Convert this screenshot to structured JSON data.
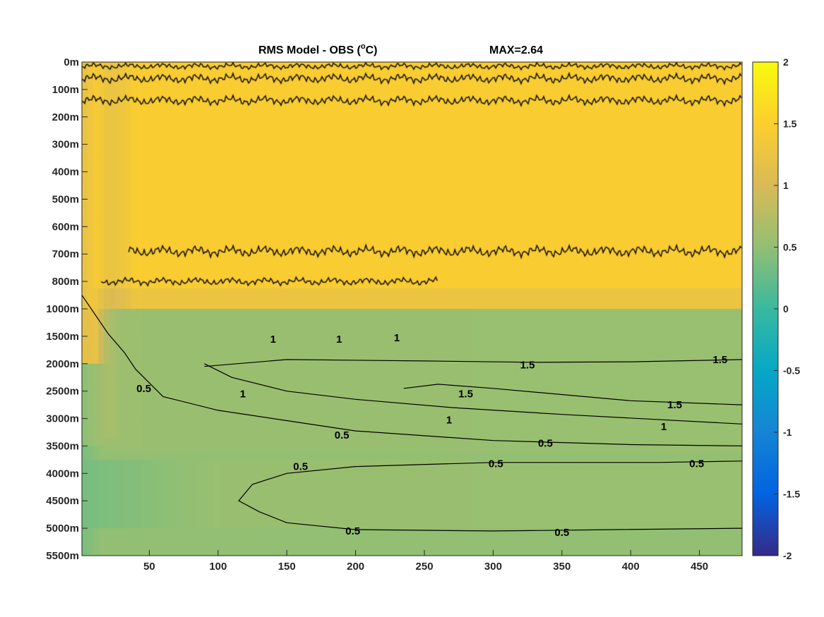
{
  "chart_data": {
    "type": "heatmap",
    "title": "RMS Model - OBS (°C)",
    "title_left": "RMS Model - OBS (",
    "title_sup": "o",
    "title_right": "C)",
    "max_label": "MAX=2.64",
    "xlim": [
      1,
      481
    ],
    "x_ticks": [
      50,
      100,
      150,
      200,
      250,
      300,
      350,
      400,
      450
    ],
    "y_tick_labels": [
      "0m",
      "100m",
      "200m",
      "300m",
      "400m",
      "500m",
      "600m",
      "700m",
      "800m",
      "1000m",
      "1500m",
      "2000m",
      "2500m",
      "3000m",
      "3500m",
      "4000m",
      "4500m",
      "5000m",
      "5500m"
    ],
    "colorbar": {
      "colormap": "parula",
      "clim": [
        -2,
        2
      ],
      "ticks": [
        "2",
        "1.5",
        "1",
        "0.5",
        "0",
        "-0.5",
        "-1",
        "-1.5",
        "-2"
      ]
    },
    "contour_levels": [
      0.5,
      1,
      1.5,
      2
    ],
    "contours": [
      {
        "level": 1.5,
        "points": [
          [
            90,
            11.1
          ],
          [
            150,
            10.85
          ],
          [
            250,
            10.9
          ],
          [
            330,
            10.95
          ],
          [
            400,
            10.93
          ],
          [
            481,
            10.85
          ]
        ]
      },
      {
        "level": 1.5,
        "points": [
          [
            235,
            11.9
          ],
          [
            260,
            11.75
          ],
          [
            300,
            11.9
          ],
          [
            400,
            12.35
          ],
          [
            481,
            12.5
          ]
        ]
      },
      {
        "level": 1,
        "points": [
          [
            90,
            11.0
          ],
          [
            110,
            11.5
          ],
          [
            150,
            12.0
          ],
          [
            200,
            12.3
          ],
          [
            270,
            12.6
          ],
          [
            350,
            12.85
          ],
          [
            481,
            13.2
          ]
        ]
      },
      {
        "level": 0.5,
        "points": [
          [
            1,
            8.5
          ],
          [
            20,
            9.9
          ],
          [
            32,
            10.6
          ],
          [
            40,
            11.2
          ],
          [
            60,
            12.2
          ],
          [
            100,
            12.7
          ],
          [
            200,
            13.45
          ],
          [
            300,
            13.8
          ],
          [
            400,
            13.95
          ],
          [
            481,
            14.0
          ]
        ]
      },
      {
        "level": 0.5,
        "points": [
          [
            481,
            14.55
          ],
          [
            420,
            14.6
          ],
          [
            300,
            14.6
          ],
          [
            200,
            14.75
          ],
          [
            150,
            15.0
          ],
          [
            125,
            15.4
          ],
          [
            115,
            16.0
          ],
          [
            130,
            16.4
          ],
          [
            150,
            16.8
          ],
          [
            200,
            17.05
          ],
          [
            300,
            17.1
          ],
          [
            481,
            17.0
          ]
        ]
      }
    ],
    "contour_labels": [
      {
        "text": "1.5",
        "x": 465,
        "y": 10.85
      },
      {
        "text": "1.5",
        "x": 325,
        "y": 11.05
      },
      {
        "text": "1.5",
        "x": 280,
        "y": 12.1
      },
      {
        "text": "1.5",
        "x": 432,
        "y": 12.5
      },
      {
        "text": "1",
        "x": 140,
        "y": 10.1
      },
      {
        "text": "1",
        "x": 188,
        "y": 10.1
      },
      {
        "text": "1",
        "x": 230,
        "y": 10.05
      },
      {
        "text": "1",
        "x": 118,
        "y": 12.1
      },
      {
        "text": "1",
        "x": 268,
        "y": 13.05
      },
      {
        "text": "1",
        "x": 424,
        "y": 13.3
      },
      {
        "text": "0.5",
        "x": 46,
        "y": 11.9
      },
      {
        "text": "0.5",
        "x": 190,
        "y": 13.6
      },
      {
        "text": "0.5",
        "x": 338,
        "y": 13.9
      },
      {
        "text": "0.5",
        "x": 160,
        "y": 14.75
      },
      {
        "text": "0.5",
        "x": 302,
        "y": 14.65
      },
      {
        "text": "0.5",
        "x": 448,
        "y": 14.65
      },
      {
        "text": "0.5",
        "x": 198,
        "y": 17.1
      },
      {
        "text": "0.5",
        "x": 350,
        "y": 17.15
      }
    ]
  }
}
